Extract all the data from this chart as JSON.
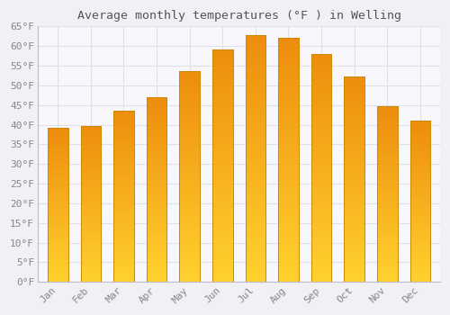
{
  "title": "Average monthly temperatures (°F ) in Welling",
  "months": [
    "Jan",
    "Feb",
    "Mar",
    "Apr",
    "May",
    "Jun",
    "Jul",
    "Aug",
    "Sep",
    "Oct",
    "Nov",
    "Dec"
  ],
  "values": [
    39.2,
    39.7,
    43.5,
    47.1,
    53.6,
    59.2,
    62.8,
    62.2,
    58.1,
    52.3,
    44.8,
    41.0
  ],
  "bar_color_bottom": "#FFCC33",
  "bar_color_mid": "#FFB020",
  "bar_color_top": "#F09010",
  "bar_edge_color": "#CC8800",
  "background_color": "#f0f0f5",
  "plot_bg_color": "#f8f8fc",
  "grid_color": "#e0e0e8",
  "tick_label_color": "#888888",
  "title_color": "#555555",
  "ylim": [
    0,
    65
  ],
  "yticks": [
    0,
    5,
    10,
    15,
    20,
    25,
    30,
    35,
    40,
    45,
    50,
    55,
    60,
    65
  ],
  "ytick_labels": [
    "0°F",
    "5°F",
    "10°F",
    "15°F",
    "20°F",
    "25°F",
    "30°F",
    "35°F",
    "40°F",
    "45°F",
    "50°F",
    "55°F",
    "60°F",
    "65°F"
  ]
}
